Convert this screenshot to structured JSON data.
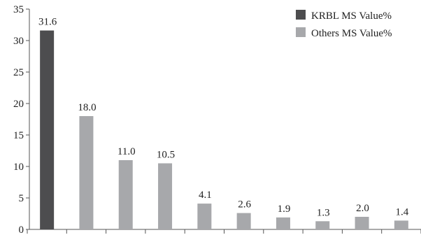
{
  "chart_data": {
    "type": "bar",
    "title": "",
    "xlabel": "",
    "ylabel": "",
    "ylim": [
      0,
      35
    ],
    "yticks": [
      0,
      5,
      10,
      15,
      20,
      25,
      30,
      35
    ],
    "grid": false,
    "legend_position": "top-right",
    "series": [
      {
        "name": "KRBL MS Value%",
        "color": "#4d4d4f",
        "values": [
          31.6,
          null,
          null,
          null,
          null,
          null,
          null,
          null,
          null,
          null
        ]
      },
      {
        "name": "Others MS Value%",
        "color": "#a7a8ab",
        "values": [
          null,
          18.0,
          11.0,
          10.5,
          4.1,
          2.6,
          1.9,
          1.3,
          2.0,
          1.4
        ]
      }
    ],
    "data_labels": [
      "31.6",
      "18.0",
      "11.0",
      "10.5",
      "4.1",
      "2.6",
      "1.9",
      "1.3",
      "2.0",
      "1.4"
    ]
  }
}
